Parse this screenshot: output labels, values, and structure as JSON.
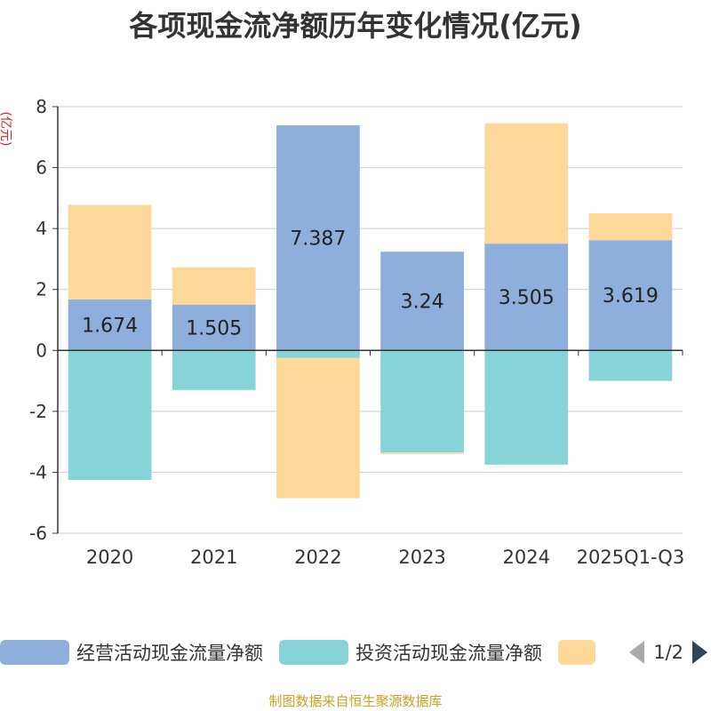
{
  "chart_data": {
    "type": "bar",
    "stacked": true,
    "title": "各项现金流净额历年变化情况(亿元)",
    "ylabel": "(亿元)",
    "xlabel": "",
    "ylim": [
      -6,
      8
    ],
    "yticks": [
      -6,
      -4,
      -2,
      0,
      2,
      4,
      6,
      8
    ],
    "grid": true,
    "legend_position": "bottom",
    "categories": [
      "2020",
      "2021",
      "2022",
      "2023",
      "2024",
      "2025Q1-Q3"
    ],
    "series": [
      {
        "name": "经营活动现金流量净额",
        "color": "#8eaedb",
        "values": [
          1.674,
          1.505,
          7.387,
          3.24,
          3.505,
          3.619
        ],
        "show_labels": true
      },
      {
        "name": "投资活动现金流量净额",
        "color": "#87d4d8",
        "values": [
          -4.25,
          -1.3,
          -0.25,
          -3.35,
          -3.75,
          -1.0
        ],
        "show_labels": false
      },
      {
        "name": "",
        "color": "#fdd898",
        "values": [
          3.1,
          1.22,
          -4.6,
          -0.05,
          3.95,
          0.88
        ],
        "show_labels": false
      }
    ]
  },
  "legend": {
    "pager": "1/2"
  },
  "source": "制图数据来自恒生聚源数据库"
}
